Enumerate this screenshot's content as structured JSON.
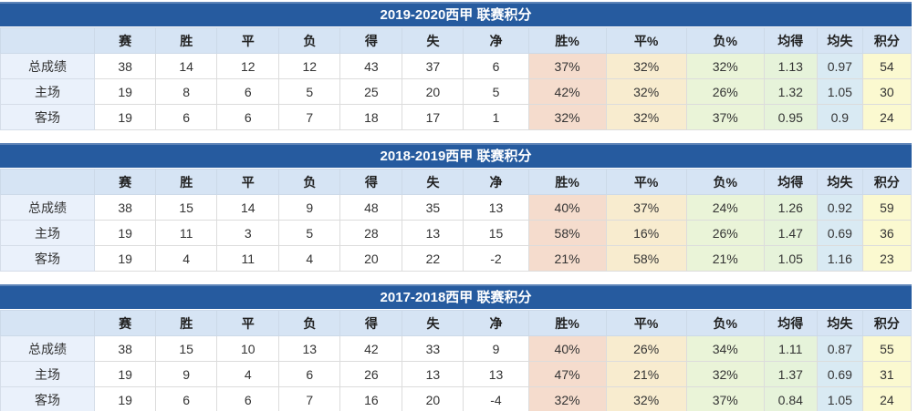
{
  "colors": {
    "title_bar_bg": "#265b9f",
    "title_bar_top_edge": "#5d84b8",
    "title_text": "#ffffff",
    "header_row_bg": "#d6e4f4",
    "row_label_bg": "#eaf1fb",
    "data_cell_bg": "#ffffff",
    "win_pct_col_bg": "#f5dccd",
    "draw_pct_col_bg": "#f8eccf",
    "lose_pct_col_bg": "#eaf4d8",
    "avg_goals_for_col_bg": "#e6f3da",
    "avg_goals_against_col_bg": "#d9eaf3",
    "points_col_bg": "#fbf9d0",
    "border": "#dcdcdc",
    "text": "#333333"
  },
  "chart_data": [
    {
      "type": "table",
      "title": "2019-2020西甲 联赛积分",
      "columns": [
        "",
        "赛",
        "胜",
        "平",
        "负",
        "得",
        "失",
        "净",
        "胜%",
        "平%",
        "负%",
        "均得",
        "均失",
        "积分"
      ],
      "rows": [
        [
          "总成绩",
          38,
          14,
          12,
          12,
          43,
          37,
          6,
          "37%",
          "32%",
          "32%",
          "1.13",
          "0.97",
          54
        ],
        [
          "主场",
          19,
          8,
          6,
          5,
          25,
          20,
          5,
          "42%",
          "32%",
          "26%",
          "1.32",
          "1.05",
          30
        ],
        [
          "客场",
          19,
          6,
          6,
          7,
          18,
          17,
          1,
          "32%",
          "32%",
          "37%",
          "0.95",
          "0.9",
          24
        ]
      ]
    },
    {
      "type": "table",
      "title": "2018-2019西甲 联赛积分",
      "columns": [
        "",
        "赛",
        "胜",
        "平",
        "负",
        "得",
        "失",
        "净",
        "胜%",
        "平%",
        "负%",
        "均得",
        "均失",
        "积分"
      ],
      "rows": [
        [
          "总成绩",
          38,
          15,
          14,
          9,
          48,
          35,
          13,
          "40%",
          "37%",
          "24%",
          "1.26",
          "0.92",
          59
        ],
        [
          "主场",
          19,
          11,
          3,
          5,
          28,
          13,
          15,
          "58%",
          "16%",
          "26%",
          "1.47",
          "0.69",
          36
        ],
        [
          "客场",
          19,
          4,
          11,
          4,
          20,
          22,
          -2,
          "21%",
          "58%",
          "21%",
          "1.05",
          "1.16",
          23
        ]
      ]
    },
    {
      "type": "table",
      "title": "2017-2018西甲 联赛积分",
      "columns": [
        "",
        "赛",
        "胜",
        "平",
        "负",
        "得",
        "失",
        "净",
        "胜%",
        "平%",
        "负%",
        "均得",
        "均失",
        "积分"
      ],
      "rows": [
        [
          "总成绩",
          38,
          15,
          10,
          13,
          42,
          33,
          9,
          "40%",
          "26%",
          "34%",
          "1.11",
          "0.87",
          55
        ],
        [
          "主场",
          19,
          9,
          4,
          6,
          26,
          13,
          13,
          "47%",
          "21%",
          "32%",
          "1.37",
          "0.69",
          31
        ],
        [
          "客场",
          19,
          6,
          6,
          7,
          16,
          20,
          -4,
          "32%",
          "32%",
          "37%",
          "0.84",
          "1.05",
          24
        ]
      ]
    }
  ]
}
